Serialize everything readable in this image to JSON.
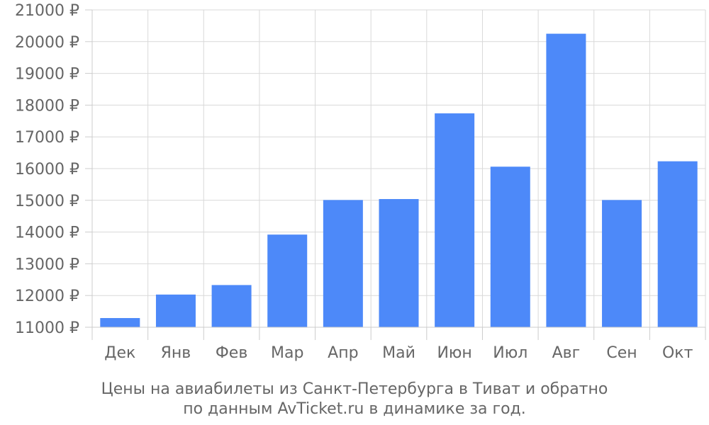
{
  "chart_data": {
    "type": "bar",
    "categories": [
      "Дек",
      "Янв",
      "Фев",
      "Мар",
      "Апр",
      "Май",
      "Июн",
      "Июл",
      "Авг",
      "Сен",
      "Окт"
    ],
    "values": [
      11290,
      12030,
      12330,
      13920,
      15010,
      15040,
      17740,
      16060,
      20250,
      15010,
      16230
    ],
    "ylim": [
      11000,
      21000
    ],
    "yticks": [
      11000,
      12000,
      13000,
      14000,
      15000,
      16000,
      17000,
      18000,
      19000,
      20000,
      21000
    ],
    "ytick_suffix": " ₽",
    "grid": true,
    "bar_color": "#4d89f9",
    "caption_line1": "Цены на авиабилеты из Санкт-Петербурга в Тиват и обратно",
    "caption_line2": "по данным AvTicket.ru в динамике за год."
  }
}
